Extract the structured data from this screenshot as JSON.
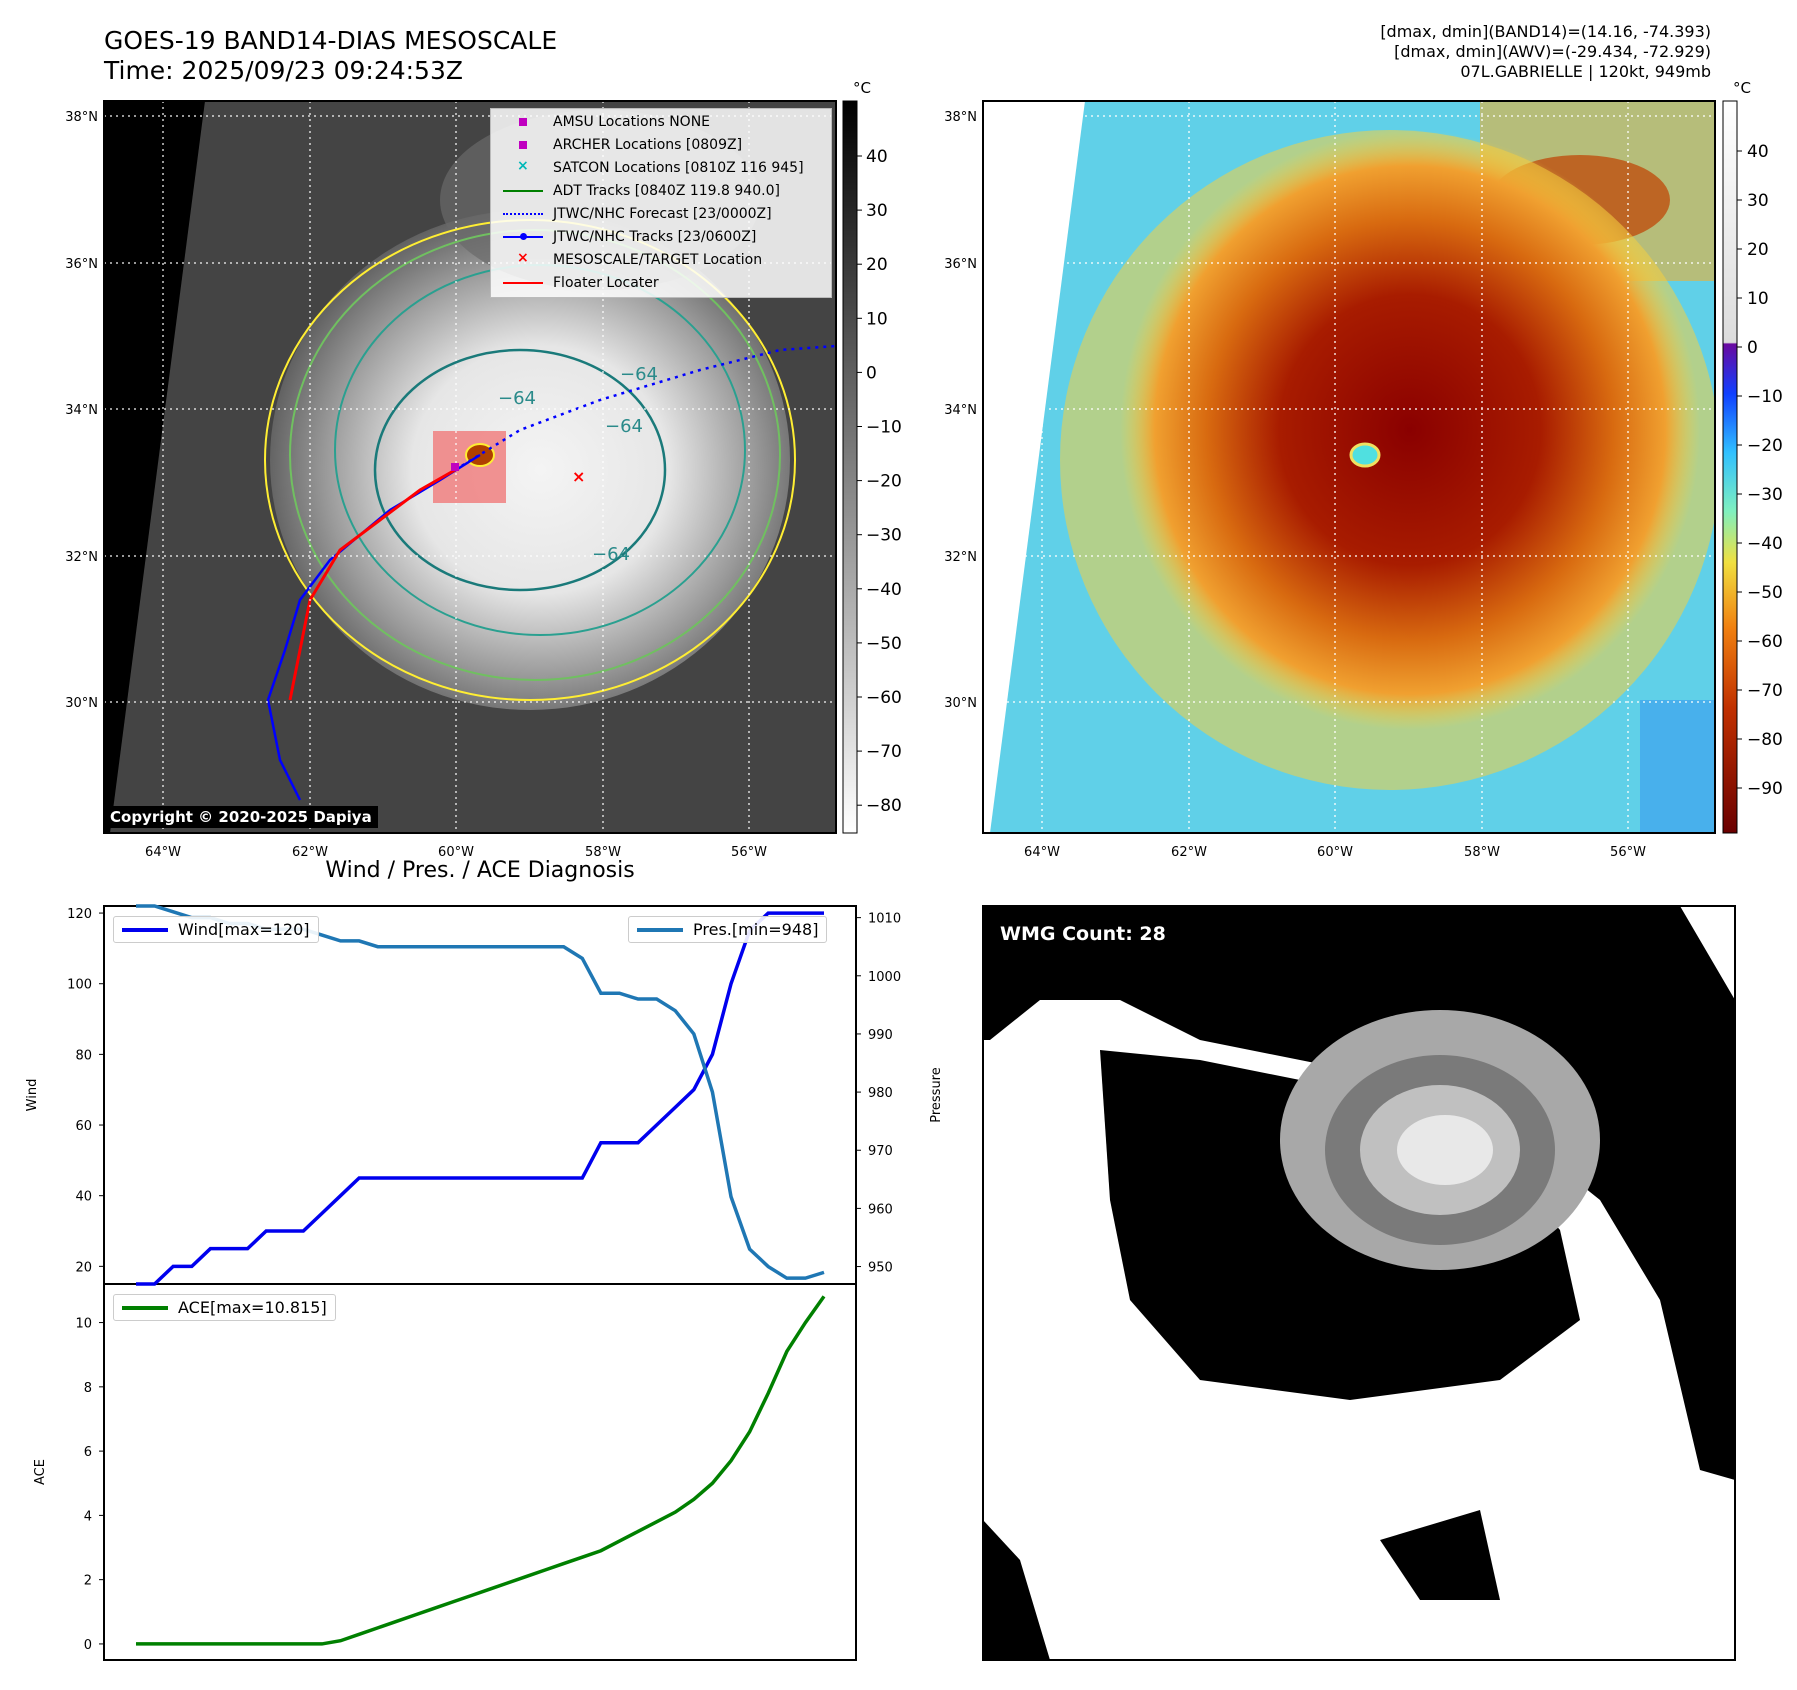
{
  "header": {
    "title_line1": "GOES-19 BAND14-DIAS MESOSCALE",
    "title_line2": "Time: 2025/09/23 09:24:53Z",
    "info_line1": "[dmax, dmin](BAND14)=(14.16, -74.393)",
    "info_line2": "[dmax, dmin](AWV)=(-29.434, -72.929)",
    "info_line3": "07L.GABRIELLE | 120kt, 949mb"
  },
  "map_axes": {
    "lat_ticks": [
      "38°N",
      "36°N",
      "34°N",
      "32°N",
      "30°N"
    ],
    "lon_ticks": [
      "64°W",
      "62°W",
      "60°W",
      "58°W",
      "56°W"
    ]
  },
  "left_map": {
    "colorbar_unit": "°C",
    "colorbar_ticks": [
      "40",
      "30",
      "20",
      "10",
      "0",
      "−10",
      "−20",
      "−30",
      "−40",
      "−50",
      "−60",
      "−70",
      "−80"
    ],
    "contour_labels": [
      "−64",
      "−64",
      "−64",
      "−64"
    ],
    "copyright": "Copyright © 2020-2025 Dapiya",
    "legend": [
      {
        "label": "AMSU Locations NONE",
        "symbol": "square",
        "color": "#c000c0"
      },
      {
        "label": "ARCHER Locations [0809Z]",
        "symbol": "square",
        "color": "#c000c0"
      },
      {
        "label": "SATCON Locations [0810Z 116 945]",
        "symbol": "x",
        "color": "#00b8b8"
      },
      {
        "label": "ADT Tracks [0840Z 119.8 940.0]",
        "symbol": "line",
        "color": "#008000"
      },
      {
        "label": "JTWC/NHC Forecast [23/0000Z]",
        "symbol": "dotted",
        "color": "#0000ff"
      },
      {
        "label": "JTWC/NHC Tracks [23/0600Z]",
        "symbol": "line-dot",
        "color": "#0000ff"
      },
      {
        "label": "MESOSCALE/TARGET Location",
        "symbol": "x",
        "color": "#ff0000"
      },
      {
        "label": "Floater Locater",
        "symbol": "line",
        "color": "#ff0000"
      }
    ]
  },
  "right_map": {
    "colorbar_unit": "°C",
    "colorbar_ticks": [
      "40",
      "30",
      "20",
      "10",
      "0",
      "−10",
      "−20",
      "−30",
      "−40",
      "−50",
      "−60",
      "−70",
      "−80",
      "−90"
    ]
  },
  "wmg_panel": {
    "label": "WMG Count: 28"
  },
  "chart_data": [
    {
      "type": "line",
      "title": "Wind / Pres. / ACE Diagnosis",
      "ylabel": "Wind",
      "y2label": "Pressure",
      "ylim": [
        15,
        122
      ],
      "y2lim": [
        947,
        1012
      ],
      "yticks": [
        20,
        40,
        60,
        80,
        100,
        120
      ],
      "y2ticks": [
        950,
        960,
        970,
        980,
        990,
        1000,
        1010
      ],
      "x": [
        0,
        1,
        2,
        3,
        4,
        5,
        6,
        7,
        8,
        9,
        10,
        11,
        12,
        13,
        14,
        15,
        16,
        17,
        18,
        19,
        20,
        21,
        22,
        23,
        24,
        25,
        26,
        27,
        28,
        29,
        30,
        31,
        32,
        33,
        34,
        35,
        36,
        37
      ],
      "series": [
        {
          "name": "Wind[max=120]",
          "axis": "left",
          "color": "#0000ee",
          "values": [
            15,
            15,
            20,
            20,
            25,
            25,
            25,
            30,
            30,
            30,
            35,
            40,
            45,
            45,
            45,
            45,
            45,
            45,
            45,
            45,
            45,
            45,
            45,
            45,
            45,
            55,
            55,
            55,
            60,
            65,
            70,
            80,
            100,
            115,
            120,
            120,
            120,
            120
          ]
        },
        {
          "name": "Pres.[min=948]",
          "axis": "right",
          "color": "#1f77b4",
          "values": [
            1012,
            1012,
            1011,
            1010,
            1010,
            1009,
            1009,
            1008,
            1008,
            1008,
            1007,
            1006,
            1006,
            1005,
            1005,
            1005,
            1005,
            1005,
            1005,
            1005,
            1005,
            1005,
            1005,
            1005,
            1003,
            997,
            997,
            996,
            996,
            994,
            990,
            980,
            962,
            953,
            950,
            948,
            948,
            949
          ]
        }
      ]
    },
    {
      "type": "line",
      "ylabel": "ACE",
      "ylim": [
        -0.5,
        11.2
      ],
      "yticks": [
        0,
        2,
        4,
        6,
        8,
        10
      ],
      "x": [
        0,
        1,
        2,
        3,
        4,
        5,
        6,
        7,
        8,
        9,
        10,
        11,
        12,
        13,
        14,
        15,
        16,
        17,
        18,
        19,
        20,
        21,
        22,
        23,
        24,
        25,
        26,
        27,
        28,
        29,
        30,
        31,
        32,
        33,
        34,
        35,
        36,
        37
      ],
      "series": [
        {
          "name": "ACE[max=10.815]",
          "color": "#008000",
          "values": [
            0,
            0,
            0,
            0,
            0,
            0,
            0,
            0,
            0,
            0,
            0,
            0.1,
            0.3,
            0.5,
            0.7,
            0.9,
            1.1,
            1.3,
            1.5,
            1.7,
            1.9,
            2.1,
            2.3,
            2.5,
            2.7,
            2.9,
            3.2,
            3.5,
            3.8,
            4.1,
            4.5,
            5.0,
            5.7,
            6.6,
            7.8,
            9.1,
            10.0,
            10.815
          ]
        }
      ]
    }
  ]
}
